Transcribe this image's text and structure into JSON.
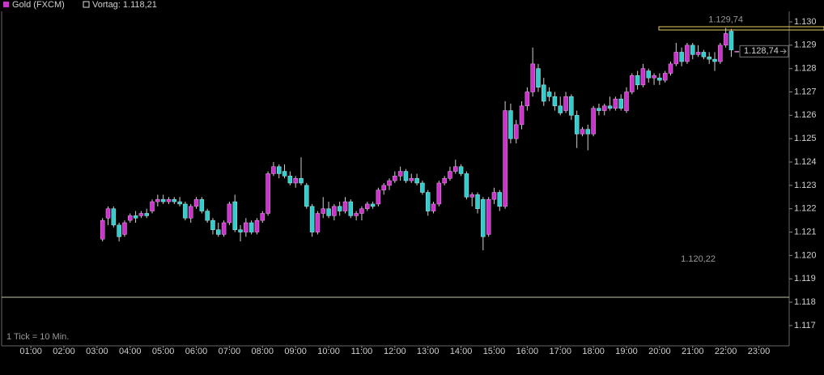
{
  "chart_data": {
    "type": "candlestick",
    "series_name": "Gold (FXCM)",
    "up_color": "#cc33cc",
    "down_color": "#33cccc",
    "note": "1 Tick = 10 Min.",
    "reference_line": {
      "label": "Vortag: 1.118,21",
      "value": 1.11821,
      "color": "#c8c8a8"
    },
    "high_label": {
      "x": 1320,
      "value": 1.12974,
      "label": "1.129,74"
    },
    "low_label": {
      "x": 1270,
      "value": 1.12022,
      "label": "1.120,22"
    },
    "last_price": {
      "value": 1.12874,
      "label": "1.128,74"
    },
    "xlim": [
      7,
      1435
    ],
    "ylim": [
      1.11613,
      1.13045
    ],
    "xticks": [
      {
        "value": 60,
        "label": "01:00"
      },
      {
        "value": 120,
        "label": "02:00"
      },
      {
        "value": 180,
        "label": "03:00"
      },
      {
        "value": 240,
        "label": "04:00"
      },
      {
        "value": 300,
        "label": "05:00"
      },
      {
        "value": 360,
        "label": "06:00"
      },
      {
        "value": 420,
        "label": "07:00"
      },
      {
        "value": 480,
        "label": "08:00"
      },
      {
        "value": 540,
        "label": "09:00"
      },
      {
        "value": 600,
        "label": "10:00"
      },
      {
        "value": 660,
        "label": "11:00"
      },
      {
        "value": 720,
        "label": "12:00"
      },
      {
        "value": 780,
        "label": "13:00"
      },
      {
        "value": 840,
        "label": "14:00"
      },
      {
        "value": 900,
        "label": "15:00"
      },
      {
        "value": 960,
        "label": "16:00"
      },
      {
        "value": 1020,
        "label": "17:00"
      },
      {
        "value": 1080,
        "label": "18:00"
      },
      {
        "value": 1140,
        "label": "19:00"
      },
      {
        "value": 1200,
        "label": "20:00"
      },
      {
        "value": 1260,
        "label": "21:00"
      },
      {
        "value": 1320,
        "label": "22:00"
      },
      {
        "value": 1380,
        "label": "23:00"
      }
    ],
    "yticks": [
      {
        "value": 1.13,
        "label": "1.130"
      },
      1.129,
      1.128,
      1.127,
      1.126,
      1.125,
      1.124,
      1.123,
      1.122,
      1.121,
      {
        "value": 1.12,
        "label": "1.120"
      },
      1.119,
      1.118,
      1.117
    ],
    "x": [
      190,
      200,
      210,
      220,
      230,
      240,
      250,
      260,
      270,
      280,
      290,
      300,
      310,
      320,
      330,
      340,
      350,
      360,
      370,
      380,
      390,
      400,
      410,
      420,
      430,
      440,
      450,
      460,
      470,
      480,
      490,
      500,
      510,
      520,
      530,
      540,
      550,
      560,
      570,
      580,
      590,
      600,
      610,
      620,
      630,
      640,
      650,
      660,
      670,
      680,
      690,
      700,
      710,
      720,
      730,
      740,
      750,
      760,
      770,
      780,
      790,
      800,
      810,
      820,
      830,
      840,
      850,
      860,
      870,
      880,
      890,
      900,
      910,
      920,
      930,
      940,
      950,
      960,
      970,
      980,
      990,
      1000,
      1010,
      1020,
      1030,
      1040,
      1050,
      1060,
      1070,
      1080,
      1090,
      1100,
      1110,
      1120,
      1130,
      1140,
      1150,
      1160,
      1170,
      1180,
      1190,
      1200,
      1210,
      1220,
      1230,
      1240,
      1250,
      1260,
      1270,
      1280,
      1290,
      1300,
      1310,
      1320,
      1330,
      1340
    ],
    "open": [
      1.1207,
      1.1216,
      1.122,
      1.1213,
      1.1209,
      1.1215,
      1.1217,
      1.1217,
      1.1218,
      1.1219,
      1.1223,
      1.1224,
      1.1223,
      1.1224,
      1.1223,
      1.1222,
      1.1216,
      1.1221,
      1.1224,
      1.1219,
      1.1215,
      1.1211,
      1.1209,
      1.1214,
      1.1223,
      1.1211,
      1.121,
      1.1214,
      1.121,
      1.1215,
      1.1218,
      1.1235,
      1.1238,
      1.1236,
      1.1234,
      1.1231,
      1.1233,
      1.123,
      1.1221,
      1.121,
      1.1218,
      1.122,
      1.1217,
      1.1221,
      1.1219,
      1.1223,
      1.1217,
      1.1218,
      1.122,
      1.1222,
      1.1222,
      1.1228,
      1.123,
      1.1232,
      1.1234,
      1.1236,
      1.1232,
      1.1233,
      1.1231,
      1.1227,
      1.1219,
      1.1222,
      1.1231,
      1.1233,
      1.1236,
      1.1238,
      1.1235,
      1.1225,
      1.1226,
      1.1224,
      1.1209,
      1.1224,
      1.1227,
      1.1221,
      1.1262,
      1.125,
      1.1256,
      1.1264,
      1.127,
      1.128,
      1.1273,
      1.127,
      1.1268,
      1.1264,
      1.1262,
      1.1268,
      1.126,
      1.1252,
      1.1254,
      1.1252,
      1.1263,
      1.1262,
      1.1264,
      1.1263,
      1.1267,
      1.1262,
      1.127,
      1.1277,
      1.1273,
      1.1279,
      1.1276,
      1.1276,
      1.1275,
      1.1278,
      1.1282,
      1.1287,
      1.1283,
      1.129,
      1.1286,
      1.1287,
      1.1285,
      1.1284,
      1.1283,
      1.129,
      1.1296,
      1.12874
    ],
    "high": [
      1.1216,
      1.1221,
      1.1221,
      1.1214,
      1.1215,
      1.1218,
      1.1219,
      1.1219,
      1.122,
      1.1224,
      1.1226,
      1.1226,
      1.1225,
      1.1225,
      1.1225,
      1.1223,
      1.1222,
      1.1225,
      1.1225,
      1.122,
      1.1216,
      1.1214,
      1.1215,
      1.1223,
      1.1226,
      1.1213,
      1.1216,
      1.1215,
      1.1216,
      1.1219,
      1.1236,
      1.124,
      1.1239,
      1.1239,
      1.1236,
      1.1234,
      1.1242,
      1.1231,
      1.1222,
      1.1219,
      1.1225,
      1.1223,
      1.1222,
      1.1223,
      1.1225,
      1.1224,
      1.1219,
      1.1221,
      1.1223,
      1.1223,
      1.1229,
      1.1231,
      1.1233,
      1.1236,
      1.1238,
      1.1237,
      1.1235,
      1.1235,
      1.1232,
      1.1228,
      1.1223,
      1.1232,
      1.1234,
      1.1238,
      1.1241,
      1.1239,
      1.1236,
      1.1227,
      1.1227,
      1.1225,
      1.1225,
      1.1229,
      1.1228,
      1.1266,
      1.1265,
      1.1258,
      1.1266,
      1.1272,
      1.1289,
      1.1282,
      1.1276,
      1.1272,
      1.127,
      1.1268,
      1.127,
      1.1269,
      1.1262,
      1.1255,
      1.1256,
      1.1264,
      1.1265,
      1.1265,
      1.1268,
      1.1268,
      1.1269,
      1.1272,
      1.1278,
      1.1279,
      1.1282,
      1.128,
      1.1278,
      1.1278,
      1.1279,
      1.1283,
      1.1291,
      1.1289,
      1.1291,
      1.1291,
      1.129,
      1.1288,
      1.1287,
      1.1287,
      1.1291,
      1.12974,
      1.1297,
      1.12874
    ],
    "low": [
      1.1206,
      1.1213,
      1.1212,
      1.1206,
      1.1208,
      1.1214,
      1.1214,
      1.1216,
      1.1216,
      1.1218,
      1.1221,
      1.1222,
      1.1222,
      1.1222,
      1.1221,
      1.1215,
      1.1214,
      1.122,
      1.1218,
      1.1214,
      1.1209,
      1.1208,
      1.1208,
      1.1213,
      1.121,
      1.1206,
      1.1208,
      1.1209,
      1.1209,
      1.1214,
      1.1217,
      1.1234,
      1.1233,
      1.1233,
      1.123,
      1.1229,
      1.123,
      1.122,
      1.1208,
      1.1209,
      1.1216,
      1.1216,
      1.1215,
      1.1217,
      1.1218,
      1.1216,
      1.1215,
      1.1215,
      1.1219,
      1.122,
      1.1221,
      1.1226,
      1.1228,
      1.1231,
      1.1232,
      1.1231,
      1.1231,
      1.123,
      1.1226,
      1.1217,
      1.1218,
      1.1221,
      1.123,
      1.1232,
      1.1235,
      1.1234,
      1.1224,
      1.1221,
      1.1218,
      1.12022,
      1.1208,
      1.1222,
      1.1219,
      1.122,
      1.1248,
      1.1248,
      1.1254,
      1.1262,
      1.1268,
      1.127,
      1.1264,
      1.1266,
      1.1262,
      1.126,
      1.1261,
      1.1258,
      1.1246,
      1.1251,
      1.1245,
      1.1251,
      1.126,
      1.126,
      1.1262,
      1.1262,
      1.1262,
      1.1261,
      1.1269,
      1.1271,
      1.1272,
      1.1274,
      1.1273,
      1.1273,
      1.1274,
      1.1277,
      1.1281,
      1.1281,
      1.1282,
      1.1284,
      1.1285,
      1.1284,
      1.1282,
      1.1279,
      1.1282,
      1.1289,
      1.1285,
      1.12874
    ],
    "close": [
      1.1215,
      1.122,
      1.1213,
      1.1208,
      1.1214,
      1.1217,
      1.1216,
      1.1218,
      1.1217,
      1.1223,
      1.1224,
      1.1223,
      1.1224,
      1.1223,
      1.1222,
      1.1216,
      1.1221,
      1.1224,
      1.1219,
      1.1215,
      1.1211,
      1.1209,
      1.1214,
      1.1222,
      1.1211,
      1.121,
      1.1214,
      1.121,
      1.1215,
      1.1218,
      1.1235,
      1.1238,
      1.1235,
      1.1234,
      1.1231,
      1.1233,
      1.1231,
      1.1221,
      1.121,
      1.1218,
      1.122,
      1.1217,
      1.1221,
      1.1219,
      1.1223,
      1.1217,
      1.1218,
      1.122,
      1.1222,
      1.1221,
      1.1228,
      1.123,
      1.1232,
      1.1234,
      1.1236,
      1.1232,
      1.1233,
      1.1231,
      1.1227,
      1.1219,
      1.1222,
      1.1231,
      1.1233,
      1.1236,
      1.1238,
      1.1235,
      1.1225,
      1.1226,
      1.122,
      1.1208,
      1.1224,
      1.1227,
      1.1221,
      1.1262,
      1.125,
      1.1256,
      1.1264,
      1.127,
      1.1282,
      1.1272,
      1.1266,
      1.1268,
      1.1264,
      1.1261,
      1.1268,
      1.126,
      1.1252,
      1.1254,
      1.1252,
      1.1263,
      1.1262,
      1.1264,
      1.1263,
      1.1267,
      1.1263,
      1.127,
      1.1277,
      1.1273,
      1.128,
      1.1276,
      1.1277,
      1.1275,
      1.1278,
      1.1282,
      1.1287,
      1.1283,
      1.129,
      1.1286,
      1.1287,
      1.1285,
      1.1284,
      1.1283,
      1.129,
      1.1295,
      1.1288,
      1.12874
    ]
  }
}
